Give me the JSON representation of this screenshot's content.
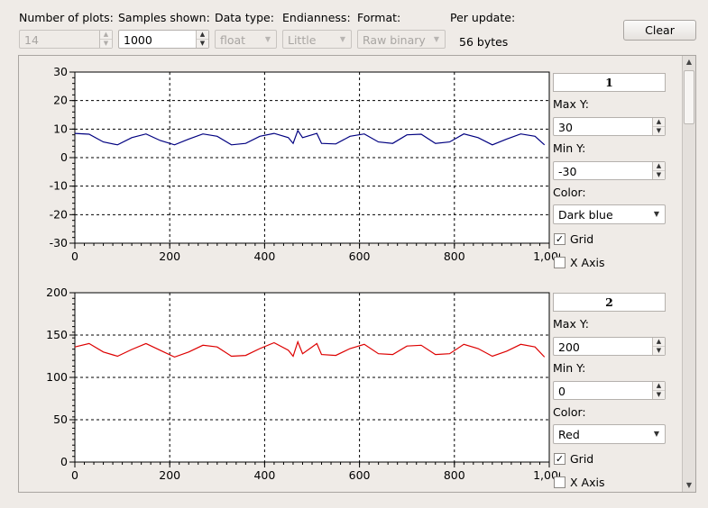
{
  "toolbar": {
    "num_plots_label": "Number of plots:",
    "num_plots_value": "14",
    "samples_label": "Samples shown:",
    "samples_value": "1000",
    "data_type_label": "Data type:",
    "data_type_value": "float",
    "endianness_label": "Endianness:",
    "endianness_value": "Little",
    "format_label": "Format:",
    "format_value": "Raw binary",
    "per_update_label": "Per update:",
    "per_update_value": "56 bytes",
    "clear_label": "Clear"
  },
  "plots": [
    {
      "title": "1",
      "max_label": "Max Y:",
      "max_value": "30",
      "min_label": "Min Y:",
      "min_value": "-30",
      "color_label": "Color:",
      "color_value": "Dark blue",
      "grid_label": "Grid",
      "grid_checked": true,
      "xaxis_label": "X Axis",
      "xaxis_checked": false,
      "line_color": "#000080"
    },
    {
      "title": "2",
      "max_label": "Max Y:",
      "max_value": "200",
      "min_label": "Min Y:",
      "min_value": "0",
      "color_label": "Color:",
      "color_value": "Red",
      "grid_label": "Grid",
      "grid_checked": true,
      "xaxis_label": "X Axis",
      "xaxis_checked": false,
      "line_color": "#dd0000"
    }
  ],
  "chart_data": [
    {
      "type": "line",
      "xlim": [
        0,
        1000
      ],
      "ylim": [
        -30,
        30
      ],
      "x_ticks": [
        "0",
        "200",
        "400",
        "600",
        "800",
        "1,000"
      ],
      "y_ticks": [
        "30",
        "20",
        "10",
        "0",
        "-10",
        "-20",
        "-30"
      ],
      "grid": true,
      "series": [
        {
          "x": [
            0,
            30,
            60,
            90,
            120,
            150,
            180,
            210,
            240,
            270,
            300,
            330,
            360,
            390,
            420,
            450,
            460,
            470,
            480,
            500,
            510,
            520,
            550,
            580,
            610,
            640,
            670,
            700,
            730,
            760,
            790,
            820,
            850,
            880,
            910,
            940,
            970,
            990
          ],
          "y": [
            8.5,
            8.2,
            5.5,
            4.5,
            7.0,
            8.3,
            6.0,
            4.5,
            6.5,
            8.3,
            7.5,
            4.5,
            5.0,
            7.5,
            8.5,
            7.0,
            5.0,
            9.5,
            7.0,
            8.0,
            8.5,
            5.0,
            4.8,
            7.5,
            8.3,
            5.5,
            5.0,
            8.0,
            8.2,
            5.0,
            5.5,
            8.3,
            7.0,
            4.5,
            6.5,
            8.3,
            7.5,
            4.5
          ]
        }
      ]
    },
    {
      "type": "line",
      "xlim": [
        0,
        1000
      ],
      "ylim": [
        0,
        200
      ],
      "x_ticks": [
        "0",
        "200",
        "400",
        "600",
        "800",
        "1,000"
      ],
      "y_ticks": [
        "200",
        "150",
        "100",
        "50",
        "0"
      ],
      "grid": true,
      "series": [
        {
          "x": [
            0,
            30,
            60,
            90,
            120,
            150,
            180,
            210,
            240,
            270,
            300,
            330,
            360,
            390,
            420,
            450,
            460,
            470,
            480,
            500,
            510,
            520,
            550,
            580,
            610,
            640,
            670,
            700,
            730,
            760,
            790,
            820,
            850,
            880,
            910,
            940,
            970,
            990
          ],
          "y": [
            136,
            140,
            130,
            125,
            133,
            140,
            132,
            124,
            130,
            138,
            136,
            125,
            126,
            134,
            141,
            132,
            125,
            142,
            128,
            136,
            140,
            127,
            126,
            134,
            139,
            128,
            127,
            137,
            138,
            127,
            128,
            139,
            134,
            125,
            131,
            139,
            136,
            124
          ]
        }
      ]
    }
  ]
}
